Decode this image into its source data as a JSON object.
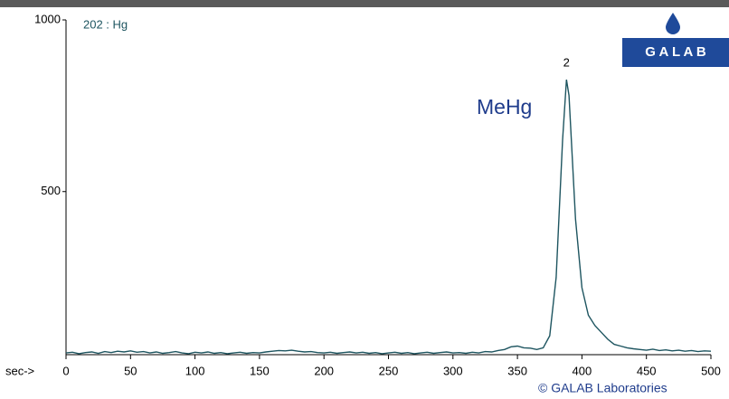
{
  "chart_data": {
    "type": "line",
    "title": "202 : Hg",
    "x_axis_label": "sec->",
    "annotation": "MeHg",
    "peak_label": "2",
    "logo": "G A L A B",
    "copyright": "© GALAB Laboratories",
    "x": [
      0,
      5,
      10,
      15,
      20,
      25,
      30,
      35,
      40,
      45,
      50,
      55,
      60,
      65,
      70,
      75,
      80,
      85,
      90,
      95,
      100,
      105,
      110,
      115,
      120,
      125,
      130,
      135,
      140,
      145,
      150,
      155,
      160,
      165,
      170,
      175,
      180,
      185,
      190,
      195,
      200,
      205,
      210,
      215,
      220,
      225,
      230,
      235,
      240,
      245,
      250,
      255,
      260,
      265,
      270,
      275,
      280,
      285,
      290,
      295,
      300,
      305,
      310,
      315,
      320,
      325,
      330,
      335,
      340,
      345,
      350,
      355,
      360,
      365,
      370,
      375,
      380,
      385,
      388,
      390,
      395,
      400,
      405,
      410,
      415,
      420,
      425,
      430,
      435,
      440,
      445,
      450,
      455,
      460,
      465,
      470,
      475,
      480,
      485,
      490,
      495,
      500
    ],
    "series": [
      {
        "name": "202 : Hg",
        "color": "#1e5560",
        "values": [
          30,
          32,
          28,
          31,
          33,
          29,
          34,
          31,
          35,
          33,
          36,
          32,
          34,
          30,
          33,
          29,
          31,
          34,
          30,
          28,
          32,
          30,
          33,
          29,
          31,
          28,
          30,
          32,
          29,
          31,
          30,
          33,
          35,
          37,
          36,
          38,
          35,
          33,
          34,
          31,
          30,
          32,
          29,
          31,
          33,
          30,
          32,
          29,
          31,
          28,
          30,
          32,
          29,
          31,
          28,
          30,
          32,
          29,
          31,
          33,
          30,
          31,
          29,
          32,
          30,
          34,
          33,
          37,
          40,
          48,
          50,
          45,
          44,
          40,
          45,
          80,
          250,
          650,
          826,
          780,
          420,
          220,
          140,
          110,
          90,
          70,
          55,
          50,
          45,
          42,
          40,
          38,
          41,
          37,
          39,
          36,
          38,
          35,
          37,
          34,
          36,
          35
        ]
      }
    ],
    "xlim": [
      0,
      500
    ],
    "xticks": [
      0,
      50,
      100,
      150,
      200,
      250,
      300,
      350,
      400,
      450,
      500
    ],
    "ylim": [
      25,
      1000
    ],
    "yticks": [
      500,
      1000
    ],
    "peak_x": 388
  }
}
